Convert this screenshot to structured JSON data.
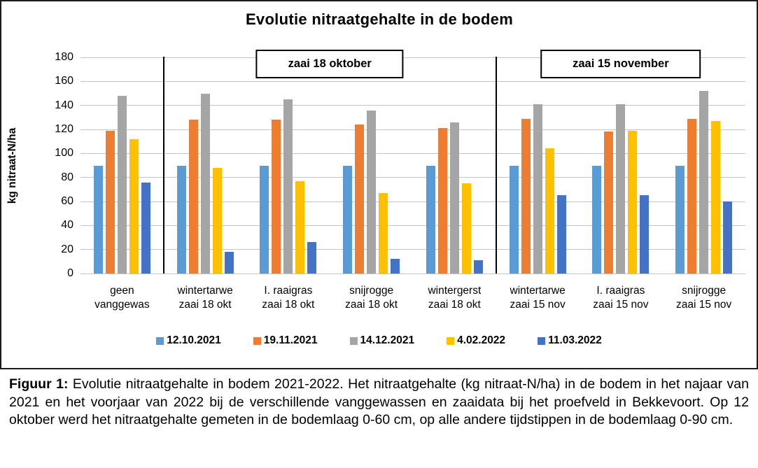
{
  "chart_data": {
    "type": "bar",
    "title": "Evolutie nitraatgehalte in de bodem",
    "xlabel": "",
    "ylabel": "kg nitraat-N/ha",
    "ylim": [
      0,
      180
    ],
    "ytick_step": 20,
    "grid": true,
    "legend_position": "bottom",
    "categories": [
      "geen\nvanggewas",
      "wintertarwe\nzaai 18 okt",
      "I. raaigras\nzaai 18 okt",
      "snijrogge\nzaai 18 okt",
      "wintergerst\nzaai 18 okt",
      "wintertarwe\nzaai 15 nov",
      "I. raaigras\nzaai 15 nov",
      "snijrogge\nzaai 15 nov"
    ],
    "series": [
      {
        "name": "12.10.2021",
        "color": "#5B9BD5",
        "values": [
          90,
          90,
          90,
          90,
          90,
          90,
          90,
          90
        ]
      },
      {
        "name": "19.11.2021",
        "color": "#ED7D31",
        "values": [
          119,
          128,
          128,
          124,
          121,
          129,
          118,
          129
        ]
      },
      {
        "name": "14.12.2021",
        "color": "#A5A5A5",
        "values": [
          148,
          150,
          145,
          136,
          126,
          141,
          141,
          152
        ]
      },
      {
        "name": "4.02.2022",
        "color": "#FFC000",
        "values": [
          112,
          88,
          77,
          67,
          75,
          104,
          119,
          127
        ]
      },
      {
        "name": "11.03.2022",
        "color": "#4472C4",
        "values": [
          76,
          18,
          26,
          12,
          11,
          65,
          65,
          60
        ]
      }
    ],
    "annotations": [
      {
        "text": "zaai 18 oktober",
        "from": 2,
        "to": 5
      },
      {
        "text": "zaai 15 november",
        "from": 6,
        "to": 8
      }
    ]
  },
  "caption": {
    "label": "Figuur 1:",
    "text": "Evolutie nitraatgehalte in bodem 2021-2022. Het nitraatgehalte (kg nitraat-N/ha) in de bodem in het najaar van 2021 en het voorjaar van 2022 bij de verschillende vanggewassen en zaaidata bij het proefveld in Bekkevoort. Op 12 oktober werd het nitraatgehalte gemeten in de bodemlaag 0-60 cm, op alle andere tijdstippen in de bodemlaag 0-90 cm."
  }
}
